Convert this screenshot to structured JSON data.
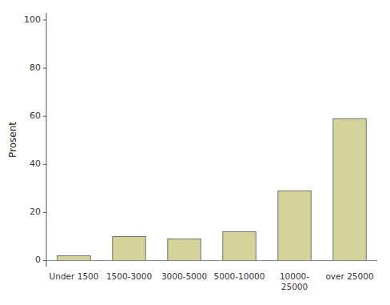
{
  "chart_data": {
    "type": "bar",
    "categories": [
      "Under 1500",
      "1500-3000",
      "3000-5000",
      "5000-10000",
      "10000-\n25000",
      "over 25000"
    ],
    "values": [
      2,
      10,
      9,
      12,
      29,
      59
    ],
    "color": "#d4d49a",
    "ylabel": "Prosent",
    "ylim": [
      -2.5,
      103
    ],
    "yticks": [
      0,
      20,
      40,
      60,
      80,
      100
    ],
    "grid": false
  }
}
